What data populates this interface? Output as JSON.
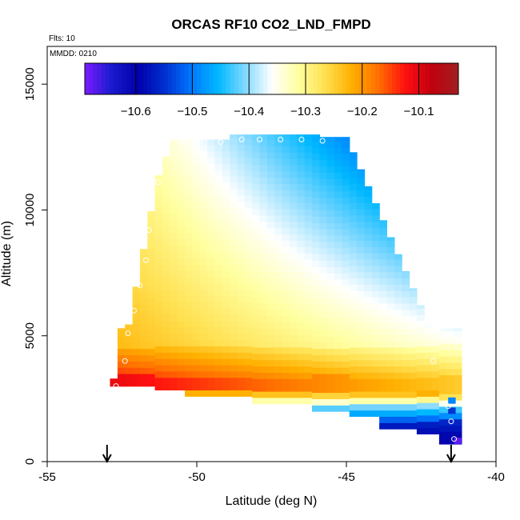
{
  "chart_data": {
    "type": "heatmap",
    "title": "ORCAS RF10 CO2_LND_FMPD",
    "flights_label": "Flts: 10",
    "date_label": "MMDD: 0210",
    "xlabel": "Latitude (deg N)",
    "ylabel": "Altitude (m)",
    "xlim": [
      -55,
      -40
    ],
    "ylim": [
      0,
      16500
    ],
    "x_ticks": [
      -55,
      -50,
      -45,
      -40
    ],
    "y_ticks": [
      0,
      5000,
      10000,
      15000
    ],
    "colorbar": {
      "range": [
        -10.69,
        -10.03
      ],
      "ticks": [
        -10.6,
        -10.5,
        -10.4,
        -10.3,
        -10.2,
        -10.1
      ],
      "colors": [
        "#7a1cff",
        "#1a1acf",
        "#0000aa",
        "#0030d0",
        "#0078ff",
        "#00b8ff",
        "#80d8ff",
        "#ffffff",
        "#ffffa0",
        "#ffe050",
        "#ffb000",
        "#ff7000",
        "#ff1010",
        "#c00010",
        "#a02020"
      ]
    },
    "arrow_latitudes": [
      -53.0,
      -41.5
    ],
    "profile_points": [
      {
        "lat": -52.7,
        "alt": 3000
      },
      {
        "lat": -52.4,
        "alt": 4000
      },
      {
        "lat": -52.3,
        "alt": 5100
      },
      {
        "lat": -52.1,
        "alt": 6000
      },
      {
        "lat": -51.9,
        "alt": 7000
      },
      {
        "lat": -51.7,
        "alt": 8000
      },
      {
        "lat": -51.6,
        "alt": 9200
      },
      {
        "lat": -51.5,
        "alt": 10400
      },
      {
        "lat": -51.3,
        "alt": 11100
      },
      {
        "lat": -51.0,
        "alt": 12300
      },
      {
        "lat": -50.5,
        "alt": 12700
      },
      {
        "lat": -49.9,
        "alt": 12700
      },
      {
        "lat": -49.2,
        "alt": 12700
      },
      {
        "lat": -48.5,
        "alt": 12800
      },
      {
        "lat": -47.9,
        "alt": 12800
      },
      {
        "lat": -47.2,
        "alt": 12800
      },
      {
        "lat": -46.5,
        "alt": 12800
      },
      {
        "lat": -45.8,
        "alt": 12750
      },
      {
        "lat": -42.3,
        "alt": 5100
      },
      {
        "lat": -42.1,
        "alt": 4000
      },
      {
        "lat": -41.6,
        "alt": 2200
      },
      {
        "lat": -41.5,
        "alt": 1600
      },
      {
        "lat": -41.4,
        "alt": 900
      }
    ]
  }
}
